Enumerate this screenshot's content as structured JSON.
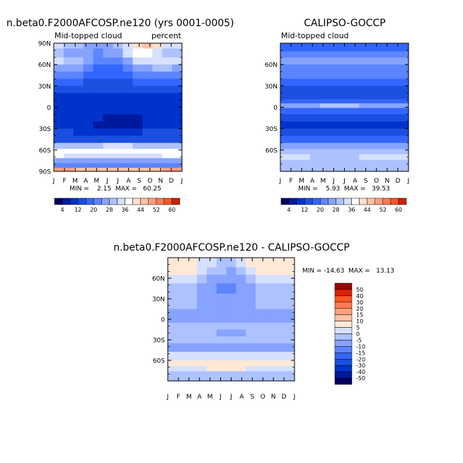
{
  "figure": {
    "months": [
      "J",
      "F",
      "M",
      "A",
      "M",
      "J",
      "J",
      "A",
      "S",
      "O",
      "N",
      "D",
      "J"
    ]
  },
  "chart_data": [
    {
      "type": "heatmap",
      "title": "n.beta0.F2000AFCOSP.ne120 (yrs 0001-0005)",
      "left_label": "Mid-topped cloud",
      "right_label": "percent",
      "ylabels": [
        "90N",
        "60N",
        "30N",
        "0",
        "30S",
        "60S",
        "90S"
      ],
      "stats": "MIN =    2.15  MAX =   60.25",
      "colorbar_labels": [
        "4",
        "12",
        "20",
        "28",
        "36",
        "44",
        "52",
        "60"
      ],
      "zones": [
        {
          "lat": 90,
          "values": [
            32,
            30,
            28,
            26,
            24,
            26,
            28,
            32,
            40,
            44,
            40,
            34,
            32
          ]
        },
        {
          "lat": 75,
          "values": [
            28,
            27,
            26,
            24,
            22,
            24,
            27,
            32,
            36,
            38,
            34,
            30,
            28
          ]
        },
        {
          "lat": 65,
          "values": [
            32,
            30,
            28,
            24,
            20,
            20,
            22,
            26,
            32,
            34,
            34,
            34,
            32
          ]
        },
        {
          "lat": 55,
          "values": [
            26,
            26,
            24,
            22,
            18,
            18,
            18,
            20,
            24,
            26,
            28,
            28,
            26
          ]
        },
        {
          "lat": 45,
          "values": [
            22,
            22,
            20,
            18,
            16,
            16,
            16,
            18,
            20,
            20,
            22,
            22,
            22
          ]
        },
        {
          "lat": 35,
          "values": [
            16,
            16,
            16,
            14,
            14,
            14,
            14,
            14,
            16,
            16,
            16,
            16,
            16
          ]
        },
        {
          "lat": 25,
          "values": [
            12,
            12,
            12,
            12,
            12,
            12,
            12,
            12,
            12,
            12,
            12,
            12,
            12
          ]
        },
        {
          "lat": 15,
          "values": [
            10,
            10,
            10,
            10,
            10,
            10,
            10,
            10,
            10,
            10,
            10,
            10,
            10
          ]
        },
        {
          "lat": 5,
          "values": [
            10,
            10,
            10,
            10,
            10,
            10,
            10,
            10,
            10,
            10,
            10,
            10,
            10
          ]
        },
        {
          "lat": -5,
          "values": [
            11,
            11,
            10,
            10,
            10,
            10,
            10,
            10,
            10,
            10,
            10,
            11,
            11
          ]
        },
        {
          "lat": -15,
          "values": [
            10,
            10,
            9,
            9,
            8,
            7,
            6,
            6,
            7,
            9,
            10,
            10,
            10
          ]
        },
        {
          "lat": -25,
          "values": [
            10,
            10,
            9,
            8,
            7,
            6,
            6,
            6,
            7,
            8,
            9,
            10,
            10
          ]
        },
        {
          "lat": -35,
          "values": [
            12,
            12,
            11,
            11,
            11,
            11,
            11,
            11,
            11,
            12,
            12,
            12,
            12
          ]
        },
        {
          "lat": -45,
          "values": [
            14,
            14,
            14,
            14,
            14,
            14,
            14,
            14,
            14,
            14,
            14,
            14,
            14
          ]
        },
        {
          "lat": -55,
          "values": [
            30,
            30,
            30,
            30,
            30,
            32,
            32,
            32,
            30,
            30,
            30,
            30,
            30
          ]
        },
        {
          "lat": -62,
          "values": [
            38,
            38,
            38,
            38,
            38,
            38,
            38,
            38,
            38,
            38,
            38,
            38,
            38
          ]
        },
        {
          "lat": -68,
          "values": [
            36,
            34,
            34,
            34,
            34,
            34,
            34,
            34,
            34,
            34,
            34,
            36,
            36
          ]
        },
        {
          "lat": -75,
          "values": [
            26,
            24,
            24,
            24,
            24,
            24,
            24,
            24,
            24,
            24,
            24,
            26,
            26
          ]
        },
        {
          "lat": -82,
          "values": [
            22,
            22,
            20,
            20,
            20,
            20,
            20,
            20,
            20,
            20,
            20,
            22,
            22
          ]
        },
        {
          "lat": -88,
          "values": [
            50,
            50,
            44,
            44,
            44,
            44,
            44,
            44,
            44,
            44,
            44,
            50,
            50
          ]
        }
      ]
    },
    {
      "type": "heatmap",
      "title": "CALIPSO-GOCCP",
      "left_label": "Mid-topped cloud",
      "right_label": "",
      "ylabels": [
        "60N",
        "30N",
        "0",
        "30S",
        "60S"
      ],
      "stats": "MIN =    5.93  MAX =   39.53",
      "colorbar_labels": [
        "4",
        "12",
        "20",
        "28",
        "36",
        "44",
        "52",
        "60"
      ],
      "zones": [
        {
          "lat": 82,
          "values": [
            18,
            18,
            18,
            18,
            18,
            18,
            18,
            18,
            18,
            18,
            18,
            18,
            18
          ]
        },
        {
          "lat": 75,
          "values": [
            22,
            22,
            22,
            22,
            22,
            22,
            22,
            22,
            22,
            22,
            22,
            22,
            22
          ]
        },
        {
          "lat": 65,
          "values": [
            26,
            26,
            26,
            26,
            26,
            26,
            26,
            26,
            26,
            26,
            26,
            26,
            26
          ]
        },
        {
          "lat": 55,
          "values": [
            22,
            22,
            22,
            22,
            22,
            22,
            22,
            22,
            22,
            22,
            22,
            22,
            22
          ]
        },
        {
          "lat": 45,
          "values": [
            20,
            20,
            20,
            20,
            20,
            20,
            20,
            20,
            20,
            20,
            20,
            20,
            20
          ]
        },
        {
          "lat": 35,
          "values": [
            18,
            18,
            18,
            18,
            18,
            18,
            18,
            18,
            18,
            18,
            18,
            18,
            18
          ]
        },
        {
          "lat": 25,
          "values": [
            14,
            14,
            14,
            14,
            14,
            14,
            14,
            14,
            14,
            14,
            14,
            14,
            14
          ]
        },
        {
          "lat": 15,
          "values": [
            12,
            12,
            12,
            12,
            12,
            12,
            12,
            12,
            12,
            12,
            12,
            12,
            12
          ]
        },
        {
          "lat": 8,
          "values": [
            18,
            18,
            18,
            18,
            18,
            18,
            18,
            18,
            18,
            18,
            18,
            18,
            18
          ]
        },
        {
          "lat": 3,
          "values": [
            26,
            26,
            26,
            26,
            28,
            28,
            28,
            30,
            26,
            26,
            26,
            26,
            26
          ]
        },
        {
          "lat": -5,
          "values": [
            16,
            16,
            16,
            16,
            16,
            16,
            16,
            16,
            16,
            16,
            16,
            16,
            16
          ]
        },
        {
          "lat": -15,
          "values": [
            12,
            12,
            12,
            12,
            12,
            12,
            12,
            12,
            12,
            12,
            12,
            12,
            12
          ]
        },
        {
          "lat": -25,
          "values": [
            10,
            10,
            10,
            10,
            10,
            10,
            10,
            10,
            10,
            10,
            10,
            10,
            10
          ]
        },
        {
          "lat": -35,
          "values": [
            14,
            14,
            14,
            14,
            14,
            14,
            14,
            14,
            14,
            14,
            14,
            14,
            14
          ]
        },
        {
          "lat": -45,
          "values": [
            18,
            18,
            18,
            18,
            18,
            18,
            18,
            18,
            18,
            18,
            18,
            18,
            18
          ]
        },
        {
          "lat": -55,
          "values": [
            26,
            26,
            26,
            26,
            26,
            26,
            26,
            26,
            26,
            26,
            26,
            26,
            26
          ]
        },
        {
          "lat": -62,
          "values": [
            28,
            28,
            28,
            28,
            28,
            28,
            28,
            28,
            28,
            28,
            28,
            28,
            28
          ]
        },
        {
          "lat": -70,
          "values": [
            32,
            32,
            32,
            30,
            30,
            30,
            30,
            30,
            32,
            32,
            34,
            34,
            32
          ]
        },
        {
          "lat": -78,
          "values": [
            28,
            28,
            28,
            28,
            28,
            28,
            28,
            28,
            28,
            28,
            28,
            28,
            28
          ]
        },
        {
          "lat": -86,
          "values": [
            30,
            30,
            30,
            30,
            30,
            30,
            30,
            30,
            30,
            30,
            30,
            30,
            30
          ]
        }
      ]
    },
    {
      "type": "heatmap",
      "title": "n.beta0.F2000AFCOSP.ne120 - CALIPSO-GOCCP",
      "ylabels": [
        "60N",
        "30N",
        "0",
        "30S",
        "60S"
      ],
      "stats": "MIN = -14.63  MAX =   13.13",
      "colorbar_labels": [
        "50",
        "40",
        "30",
        "20",
        "15",
        "10",
        "5",
        "0",
        "-5",
        "-10",
        "-15",
        "-20",
        "-30",
        "-40",
        "-50"
      ],
      "zones": [
        {
          "lat": 82,
          "values": [
            6,
            6,
            6,
            4,
            2,
            -2,
            -4,
            0,
            5,
            8,
            8,
            6,
            6
          ]
        },
        {
          "lat": 70,
          "values": [
            6,
            8,
            6,
            4,
            -2,
            -4,
            -6,
            -2,
            4,
            8,
            8,
            6,
            6
          ]
        },
        {
          "lat": 60,
          "values": [
            0,
            0,
            0,
            -2,
            -6,
            -10,
            -10,
            -6,
            -2,
            0,
            0,
            0,
            0
          ]
        },
        {
          "lat": 45,
          "values": [
            -2,
            -2,
            -4,
            -6,
            -10,
            -12,
            -12,
            -10,
            -6,
            -4,
            -2,
            -2,
            -2
          ]
        },
        {
          "lat": 30,
          "values": [
            -2,
            -2,
            -4,
            -6,
            -8,
            -10,
            -10,
            -8,
            -6,
            -4,
            -2,
            -2,
            -2
          ]
        },
        {
          "lat": 20,
          "values": [
            -4,
            -4,
            -4,
            -6,
            -8,
            -8,
            -8,
            -8,
            -6,
            -4,
            -4,
            -4,
            -4
          ]
        },
        {
          "lat": 10,
          "values": [
            -8,
            -8,
            -6,
            -6,
            -6,
            -6,
            -6,
            -6,
            -6,
            -6,
            -8,
            -8,
            -8
          ]
        },
        {
          "lat": 0,
          "values": [
            -10,
            -10,
            -10,
            -10,
            -10,
            -10,
            -10,
            -10,
            -10,
            -10,
            -10,
            -10,
            -10
          ]
        },
        {
          "lat": -10,
          "values": [
            -4,
            -4,
            -4,
            -4,
            -4,
            -4,
            -4,
            -4,
            -4,
            -4,
            -4,
            -4,
            -4
          ]
        },
        {
          "lat": -20,
          "values": [
            -2,
            -2,
            -2,
            -2,
            -4,
            -6,
            -6,
            -6,
            -4,
            -2,
            -2,
            -2,
            -2
          ]
        },
        {
          "lat": -30,
          "values": [
            -4,
            -4,
            -4,
            -4,
            -4,
            -4,
            -4,
            -4,
            -4,
            -4,
            -4,
            -4,
            -4
          ]
        },
        {
          "lat": -40,
          "values": [
            -6,
            -6,
            -6,
            -6,
            -6,
            -6,
            -6,
            -6,
            -6,
            -6,
            -6,
            -6,
            -6
          ]
        },
        {
          "lat": -55,
          "values": [
            2,
            2,
            2,
            2,
            2,
            2,
            2,
            2,
            2,
            2,
            2,
            2,
            2
          ]
        },
        {
          "lat": -65,
          "values": [
            6,
            6,
            6,
            6,
            8,
            8,
            8,
            8,
            6,
            6,
            6,
            6,
            6
          ]
        },
        {
          "lat": -72,
          "values": [
            2,
            2,
            4,
            4,
            6,
            8,
            8,
            6,
            4,
            2,
            2,
            2,
            2
          ]
        },
        {
          "lat": -80,
          "values": [
            -2,
            -2,
            -2,
            -2,
            -2,
            -2,
            -2,
            -2,
            -2,
            -2,
            -2,
            -2,
            -2
          ]
        },
        {
          "lat": -88,
          "values": [
            -2,
            -2,
            -2,
            -2,
            -2,
            -2,
            -2,
            -2,
            -2,
            -2,
            -2,
            -2,
            -2
          ]
        }
      ]
    }
  ],
  "palettes": {
    "abs": {
      "levels": [
        4,
        8,
        12,
        16,
        20,
        24,
        28,
        32,
        36,
        40,
        44,
        48,
        52,
        56,
        60
      ],
      "colors": [
        "#000060",
        "#001a9e",
        "#0033cc",
        "#1a4fe0",
        "#3366ff",
        "#5c85ff",
        "#85a3ff",
        "#adc2ff",
        "#d6e0ff",
        "#ffffff",
        "#ffe0cc",
        "#ffc2a3",
        "#ff9f80",
        "#ff7a52",
        "#ff5522",
        "#cc2200"
      ]
    },
    "diff": {
      "levels": [
        -50,
        -40,
        -30,
        -20,
        -15,
        -10,
        -5,
        0,
        5,
        10,
        15,
        20,
        30,
        40,
        50
      ],
      "colors": [
        "#000060",
        "#001a9e",
        "#0033cc",
        "#1a4fe0",
        "#3366ff",
        "#5c85ff",
        "#85a3ff",
        "#adc2ff",
        "#d6e0ff",
        "#ffe8d6",
        "#ffc2a3",
        "#ff9f80",
        "#ff7a52",
        "#ff5522",
        "#dd2200",
        "#990000"
      ]
    }
  }
}
